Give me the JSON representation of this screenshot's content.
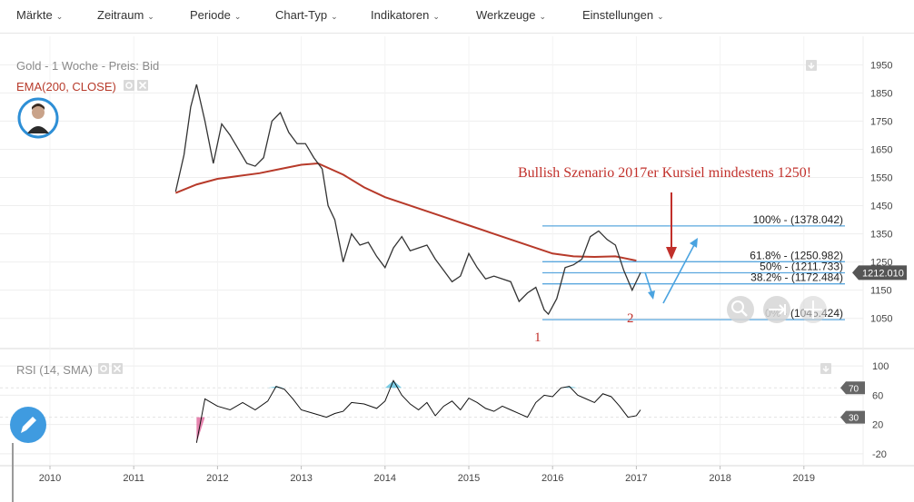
{
  "menu": [
    {
      "label": "Märkte"
    },
    {
      "label": "Zeitraum"
    },
    {
      "label": "Periode"
    },
    {
      "label": "Chart-Typ"
    },
    {
      "label": "Indikatoren"
    },
    {
      "label": "Werkzeuge"
    },
    {
      "label": "Einstellungen"
    }
  ],
  "colors": {
    "price": "#333333",
    "ema": "#b73a2a",
    "fib": "#5aa7de",
    "rsi_hot": "#5bc0de",
    "rsi_cold": "#e0669b",
    "annotation": "#c1302b"
  },
  "chart_data": [
    {
      "type": "line",
      "title": "Gold - 1 Woche - Preis: Bid",
      "indicator": "EMA(200, CLOSE)",
      "x_ticks": [
        "2010",
        "2011",
        "2012",
        "2013",
        "2014",
        "2015",
        "2016",
        "2017",
        "2018",
        "2019"
      ],
      "y_ticks": [
        1950,
        1850,
        1750,
        1650,
        1550,
        1450,
        1350,
        1250,
        1150,
        1050
      ],
      "ylim": [
        1020,
        1980
      ],
      "last_price_label": "1212.010",
      "series": [
        {
          "key": "price",
          "x": [
            2011.5,
            2011.6,
            2011.68,
            2011.75,
            2011.85,
            2011.95,
            2012.05,
            2012.15,
            2012.25,
            2012.35,
            2012.45,
            2012.55,
            2012.65,
            2012.75,
            2012.85,
            2012.95,
            2013.05,
            2013.15,
            2013.25,
            2013.32,
            2013.4,
            2013.5,
            2013.6,
            2013.7,
            2013.8,
            2013.9,
            2014.0,
            2014.1,
            2014.2,
            2014.3,
            2014.4,
            2014.5,
            2014.6,
            2014.7,
            2014.8,
            2014.9,
            2015.0,
            2015.1,
            2015.2,
            2015.3,
            2015.4,
            2015.5,
            2015.6,
            2015.7,
            2015.8,
            2015.9,
            2015.95,
            2016.05,
            2016.15,
            2016.25,
            2016.35,
            2016.45,
            2016.55,
            2016.65,
            2016.75,
            2016.85,
            2016.95,
            2017.05
          ],
          "values": [
            1500,
            1630,
            1800,
            1880,
            1750,
            1600,
            1740,
            1700,
            1650,
            1600,
            1590,
            1620,
            1750,
            1780,
            1710,
            1670,
            1670,
            1620,
            1580,
            1450,
            1400,
            1250,
            1350,
            1310,
            1320,
            1270,
            1230,
            1300,
            1340,
            1290,
            1300,
            1310,
            1260,
            1220,
            1180,
            1200,
            1280,
            1230,
            1190,
            1200,
            1190,
            1180,
            1110,
            1140,
            1160,
            1080,
            1065,
            1120,
            1230,
            1240,
            1260,
            1340,
            1360,
            1330,
            1310,
            1220,
            1150,
            1212
          ]
        },
        {
          "key": "ema",
          "x": [
            2011.5,
            2011.75,
            2012.0,
            2012.25,
            2012.5,
            2012.75,
            2013.0,
            2013.2,
            2013.5,
            2013.75,
            2014.0,
            2014.25,
            2014.5,
            2014.75,
            2015.0,
            2015.25,
            2015.5,
            2015.75,
            2016.0,
            2016.25,
            2016.5,
            2016.75,
            2017.0
          ],
          "values": [
            1495,
            1525,
            1545,
            1555,
            1565,
            1580,
            1595,
            1600,
            1560,
            1515,
            1480,
            1455,
            1430,
            1405,
            1380,
            1355,
            1330,
            1305,
            1280,
            1270,
            1268,
            1270,
            1255
          ]
        }
      ],
      "fibonacci": [
        {
          "label": "100% - (1378.042)",
          "value": 1378.042
        },
        {
          "label": "61.8% - (1250.982)",
          "value": 1250.982
        },
        {
          "label": "50% - (1211.733)",
          "value": 1211.733
        },
        {
          "label": "38.2% - (1172.484)",
          "value": 1172.484
        },
        {
          "label": "0% - (1045.424)",
          "value": 1045.424
        }
      ],
      "annotations": {
        "headline": "Bullish Szenario 2017er Kursiel mindestens 1250!",
        "wave1": "1",
        "wave2": "2"
      }
    },
    {
      "type": "line",
      "title": "RSI (14, SMA)",
      "y_ticks": [
        100,
        60,
        20,
        -20
      ],
      "ylim": [
        -30,
        110
      ],
      "levels": [
        {
          "label": "70",
          "value": 70
        },
        {
          "label": "30",
          "value": 30
        }
      ],
      "series": [
        {
          "key": "rsi",
          "x": [
            2011.75,
            2011.85,
            2012.0,
            2012.15,
            2012.3,
            2012.45,
            2012.6,
            2012.7,
            2012.8,
            2012.9,
            2013.0,
            2013.15,
            2013.3,
            2013.4,
            2013.5,
            2013.6,
            2013.75,
            2013.9,
            2014.0,
            2014.1,
            2014.2,
            2014.3,
            2014.4,
            2014.5,
            2014.6,
            2014.7,
            2014.8,
            2014.9,
            2015.0,
            2015.1,
            2015.2,
            2015.3,
            2015.4,
            2015.5,
            2015.6,
            2015.7,
            2015.8,
            2015.9,
            2016.0,
            2016.1,
            2016.2,
            2016.3,
            2016.4,
            2016.5,
            2016.6,
            2016.7,
            2016.8,
            2016.9,
            2017.0,
            2017.05
          ],
          "values": [
            -5,
            55,
            45,
            40,
            50,
            40,
            52,
            72,
            68,
            55,
            40,
            35,
            30,
            35,
            38,
            50,
            48,
            42,
            52,
            80,
            60,
            48,
            40,
            50,
            32,
            45,
            52,
            40,
            56,
            50,
            42,
            38,
            45,
            40,
            35,
            30,
            50,
            60,
            58,
            70,
            72,
            60,
            55,
            50,
            62,
            58,
            45,
            30,
            32,
            40
          ]
        }
      ]
    }
  ]
}
